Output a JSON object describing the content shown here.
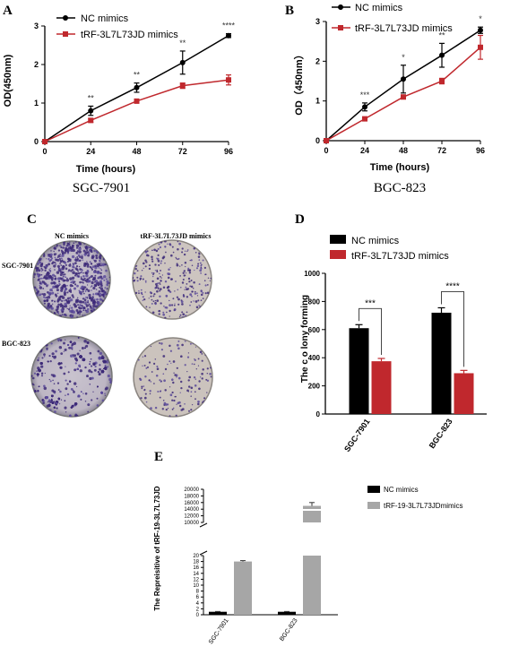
{
  "chart_data": [
    {
      "panel": "A",
      "type": "line",
      "title": "SGC-7901",
      "xlabel": "Time (hours)",
      "ylabel": "OD(450nm)",
      "x": [
        0,
        24,
        48,
        72,
        96
      ],
      "xticks": [
        "0",
        "24",
        "48",
        "72",
        "96"
      ],
      "yticks": [
        "0",
        "1",
        "2",
        "3"
      ],
      "xlim": [
        0,
        96
      ],
      "ylim": [
        0,
        3
      ],
      "legend": "top-left",
      "series": [
        {
          "name": "NC mimics",
          "values": [
            0,
            0.8,
            1.4,
            2.05,
            2.75
          ],
          "errors": [
            0,
            0.12,
            0.12,
            0.3,
            0.05
          ],
          "color": "#000000",
          "marker": "circle"
        },
        {
          "name": "tRF-3L7L73JD mimics",
          "values": [
            0,
            0.55,
            1.05,
            1.45,
            1.6
          ],
          "errors": [
            0,
            0.05,
            0.05,
            0.07,
            0.13
          ],
          "color": "#c0282d",
          "marker": "square"
        }
      ],
      "significance": [
        "**",
        "**",
        "**",
        "****"
      ]
    },
    {
      "panel": "B",
      "type": "line",
      "title": "BGC-823",
      "xlabel": "Time (hours)",
      "ylabel": "OD（450nm）",
      "x": [
        0,
        24,
        48,
        72,
        96
      ],
      "xticks": [
        "0",
        "24",
        "48",
        "72",
        "96"
      ],
      "yticks": [
        "0",
        "1",
        "2",
        "3"
      ],
      "xlim": [
        0,
        96
      ],
      "ylim": [
        0,
        3
      ],
      "legend": "top-left",
      "series": [
        {
          "name": "NC mimics",
          "values": [
            0,
            0.85,
            1.55,
            2.15,
            2.78
          ],
          "errors": [
            0,
            0.1,
            0.35,
            0.3,
            0.08
          ],
          "color": "#000000",
          "marker": "circle"
        },
        {
          "name": "tRF-3L7L73JD mimics",
          "values": [
            0,
            0.55,
            1.1,
            1.5,
            2.35
          ],
          "errors": [
            0,
            0.03,
            0.05,
            0.07,
            0.3
          ],
          "color": "#c0282d",
          "marker": "square"
        }
      ],
      "significance": [
        "***",
        "*",
        "**",
        "*"
      ]
    },
    {
      "panel": "C",
      "type": "image",
      "columns": [
        "NC mimics",
        "tRF-3L7L73JD mimics"
      ],
      "rows": [
        "SGC-7901",
        "BGC-823"
      ],
      "colony_density": [
        [
          1.0,
          0.4
        ],
        [
          1.0,
          0.22
        ]
      ]
    },
    {
      "panel": "D",
      "type": "bar",
      "ylabel": "The c o lony forming",
      "categories": [
        "SGC-7901",
        "BGC-823"
      ],
      "yticks": [
        "0",
        "200",
        "400",
        "600",
        "800",
        "1000"
      ],
      "ylim": [
        0,
        1000
      ],
      "legend": "top",
      "series": [
        {
          "name": "NC mimics",
          "values": [
            610,
            720
          ],
          "errors": [
            25,
            35
          ],
          "color": "#000000"
        },
        {
          "name": "tRF-3L7L73JD mimics",
          "values": [
            375,
            290
          ],
          "errors": [
            20,
            20
          ],
          "color": "#c0282d"
        }
      ],
      "significance": [
        "***",
        "****"
      ]
    },
    {
      "panel": "E",
      "type": "bar",
      "ylabel": "The Repreisitive of tRF-19-3L7L73JD",
      "categories": [
        "SGC-7901",
        "BGC-823"
      ],
      "yticks_lower": [
        "0",
        "2",
        "4",
        "6",
        "8",
        "10",
        "12",
        "14",
        "16",
        "18",
        "20"
      ],
      "yticks_upper": [
        "10000",
        "12000",
        "14000",
        "16000",
        "18000",
        "20000"
      ],
      "ylim_lower": [
        0,
        20
      ],
      "ylim_upper": [
        10000,
        20000
      ],
      "legend": "top-right",
      "series": [
        {
          "name": "NC mimics",
          "values": [
            1,
            1
          ],
          "errors": [
            0.1,
            0.1
          ],
          "color": "#000000"
        },
        {
          "name": "tRF-19-3L7L73JDmimics",
          "values": [
            18,
            15000
          ],
          "errors": [
            0.3,
            1000
          ],
          "color": "#a6a6a6"
        }
      ]
    }
  ]
}
